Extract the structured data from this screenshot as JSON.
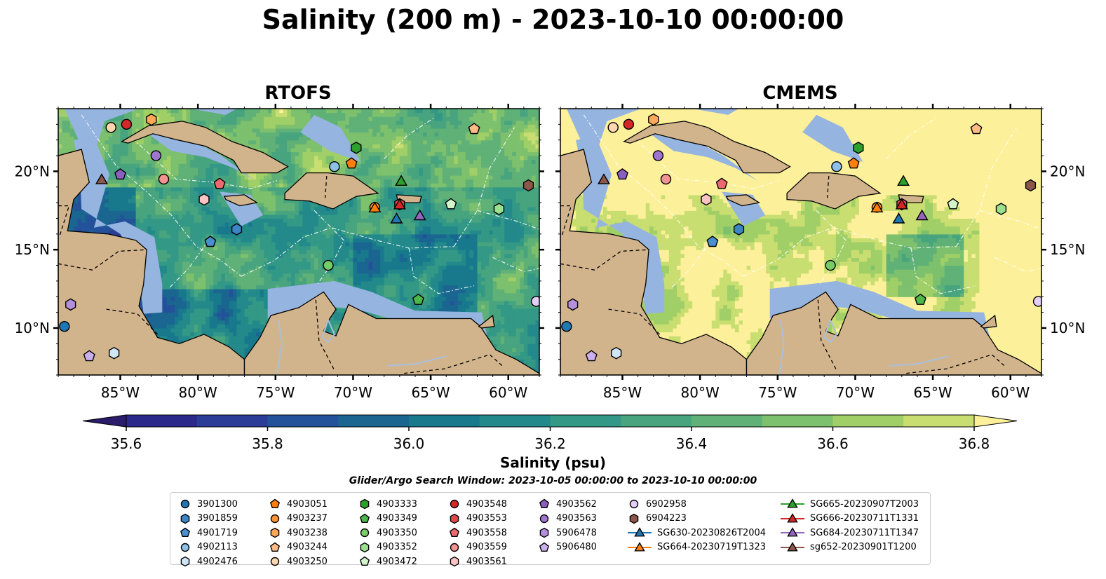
{
  "title": "Salinity (200 m) - 2023-10-10 00:00:00",
  "colors": {
    "land": "#d2b48c",
    "shelf": "#95b4df",
    "river": "#a9bfdc",
    "coast": "#000000",
    "sea_low": "#2b1c6d",
    "sea_high": "#fdf09a"
  },
  "chart_data": {
    "type": "heatmap",
    "panels": [
      {
        "title": "RTOFS",
        "lon_range": [
          -89,
          -58
        ],
        "lat_range": [
          7,
          24
        ],
        "lon_ticks": [
          "85°W",
          "80°W",
          "75°W",
          "70°W",
          "65°W",
          "60°W"
        ],
        "lat_ticks": [
          "20°N",
          "15°N",
          "10°N"
        ],
        "lat_tick_side": "left",
        "field": "salinity at 200 m, mostly 35.8 - 36.7 psu"
      },
      {
        "title": "CMEMS",
        "lon_range": [
          -89,
          -58
        ],
        "lat_range": [
          7,
          24
        ],
        "lon_ticks": [
          "85°W",
          "80°W",
          "75°W",
          "70°W",
          "65°W",
          "60°W"
        ],
        "lat_ticks": [
          "20°N",
          "15°N",
          "10°N"
        ],
        "lat_tick_side": "right",
        "field": "salinity at 200 m, mostly 36.3 - 37.0 psu"
      }
    ],
    "colorbar": {
      "label": "Salinity (psu)",
      "min": 35.5,
      "max": 37.0,
      "step": 0.1,
      "ticks": [
        "35.6",
        "35.8",
        "36.0",
        "36.2",
        "36.4",
        "36.6",
        "36.8"
      ],
      "extend": "both",
      "colors": [
        "#2a1b6b",
        "#2b2a8a",
        "#2b3d96",
        "#24529a",
        "#1a6690",
        "#18798d",
        "#23898a",
        "#339886",
        "#47a47e",
        "#5fb177",
        "#7dc06d",
        "#a0cf68",
        "#c9de71",
        "#fdf09a"
      ]
    },
    "legend_title": "Glider/Argo Search Window: 2023-10-05 00:00:00 to 2023-10-10 00:00:00",
    "legend": [
      {
        "label": "3901300",
        "marker": "circle",
        "color": "#1f77b4"
      },
      {
        "label": "3901859",
        "marker": "hexagon",
        "color": "#3b86c4"
      },
      {
        "label": "4901719",
        "marker": "pentagon",
        "color": "#4a90d0"
      },
      {
        "label": "4902113",
        "marker": "circle",
        "color": "#8ec1e8"
      },
      {
        "label": "4902476",
        "marker": "hexagon",
        "color": "#cfe6f7"
      },
      {
        "label": "4903051",
        "marker": "pentagon",
        "color": "#ff7f0e"
      },
      {
        "label": "4903237",
        "marker": "circle",
        "color": "#ff9233"
      },
      {
        "label": "4903238",
        "marker": "hexagon",
        "color": "#ffa85c"
      },
      {
        "label": "4903244",
        "marker": "pentagon",
        "color": "#ffbb85"
      },
      {
        "label": "4903250",
        "marker": "circle",
        "color": "#ffd7b0"
      },
      {
        "label": "4903333",
        "marker": "hexagon",
        "color": "#2ca02c"
      },
      {
        "label": "4903349",
        "marker": "pentagon",
        "color": "#4cb84c"
      },
      {
        "label": "4903350",
        "marker": "circle",
        "color": "#77cc66"
      },
      {
        "label": "4903352",
        "marker": "hexagon",
        "color": "#9be08f"
      },
      {
        "label": "4903472",
        "marker": "pentagon",
        "color": "#d2f5c9"
      },
      {
        "label": "4903548",
        "marker": "circle",
        "color": "#d62728"
      },
      {
        "label": "4903553",
        "marker": "hexagon",
        "color": "#e0474a"
      },
      {
        "label": "4903558",
        "marker": "pentagon",
        "color": "#ec6a6f"
      },
      {
        "label": "4903559",
        "marker": "circle",
        "color": "#f59393"
      },
      {
        "label": "4903561",
        "marker": "hexagon",
        "color": "#fbc3c3"
      },
      {
        "label": "4903562",
        "marker": "pentagon",
        "color": "#8c5fbf"
      },
      {
        "label": "4903563",
        "marker": "circle",
        "color": "#9f76cf"
      },
      {
        "label": "5906478",
        "marker": "hexagon",
        "color": "#b38fdc"
      },
      {
        "label": "5906480",
        "marker": "pentagon",
        "color": "#cbb0ec"
      },
      {
        "label": "6902958",
        "marker": "circle",
        "color": "#e3cff8"
      },
      {
        "label": "6904223",
        "marker": "hexagon",
        "color": "#8c564b"
      },
      {
        "label": "SG630-20230826T2004",
        "marker": "triangle-line",
        "color": "#1f77b4"
      },
      {
        "label": "SG664-20230719T1323",
        "marker": "triangle-line",
        "color": "#ff7f0e"
      },
      {
        "label": "SG665-20230907T2003",
        "marker": "triangle-line",
        "color": "#2ca02c"
      },
      {
        "label": "SG666-20230711T1331",
        "marker": "triangle-line",
        "color": "#d62728"
      },
      {
        "label": "SG684-20230711T1347",
        "marker": "triangle-line",
        "color": "#9467bd"
      },
      {
        "label": "sg652-20230901T1200",
        "marker": "triangle-line",
        "color": "#8c564b"
      }
    ],
    "observations": [
      {
        "id": "3901300",
        "lon": -88.6,
        "lat": 10.1
      },
      {
        "id": "3901859",
        "lon": -77.5,
        "lat": 16.3
      },
      {
        "id": "4901719",
        "lon": -79.2,
        "lat": 15.5
      },
      {
        "id": "4902113",
        "lon": -71.2,
        "lat": 20.3
      },
      {
        "id": "4902476",
        "lon": -85.4,
        "lat": 8.4
      },
      {
        "id": "4903051",
        "lon": -70.1,
        "lat": 20.5
      },
      {
        "id": "4903237",
        "lon": -68.6,
        "lat": 17.7
      },
      {
        "id": "4903238",
        "lon": -83.0,
        "lat": 23.3
      },
      {
        "id": "4903244",
        "lon": -62.2,
        "lat": 22.7
      },
      {
        "id": "4903250",
        "lon": -85.6,
        "lat": 22.8
      },
      {
        "id": "4903333",
        "lon": -69.8,
        "lat": 21.5
      },
      {
        "id": "4903349",
        "lon": -65.8,
        "lat": 11.8
      },
      {
        "id": "4903350",
        "lon": -71.6,
        "lat": 14.0
      },
      {
        "id": "4903352",
        "lon": -60.6,
        "lat": 17.6
      },
      {
        "id": "4903472",
        "lon": -63.7,
        "lat": 17.9
      },
      {
        "id": "4903548",
        "lon": -84.6,
        "lat": 23.0
      },
      {
        "id": "4903553",
        "lon": -67.0,
        "lat": 17.9
      },
      {
        "id": "4903558",
        "lon": -78.6,
        "lat": 19.2
      },
      {
        "id": "4903559",
        "lon": -82.2,
        "lat": 19.5
      },
      {
        "id": "4903561",
        "lon": -79.6,
        "lat": 18.2
      },
      {
        "id": "4903562",
        "lon": -85.0,
        "lat": 19.8
      },
      {
        "id": "4903563",
        "lon": -82.7,
        "lat": 21.0
      },
      {
        "id": "5906478",
        "lon": -88.2,
        "lat": 11.5
      },
      {
        "id": "5906480",
        "lon": -87.0,
        "lat": 8.2
      },
      {
        "id": "6902958",
        "lon": -58.2,
        "lat": 11.7
      },
      {
        "id": "6904223",
        "lon": -58.7,
        "lat": 19.1
      },
      {
        "id": "SG630-20230826T2004",
        "lon": -67.2,
        "lat": 17.0
      },
      {
        "id": "SG664-20230719T1323",
        "lon": -68.6,
        "lat": 17.7
      },
      {
        "id": "SG665-20230907T2003",
        "lon": -66.9,
        "lat": 19.4
      },
      {
        "id": "SG666-20230711T1331",
        "lon": -67.0,
        "lat": 17.9
      },
      {
        "id": "SG684-20230711T1347",
        "lon": -65.7,
        "lat": 17.2
      },
      {
        "id": "sg652-20230901T1200",
        "lon": -86.2,
        "lat": 19.5
      }
    ]
  }
}
